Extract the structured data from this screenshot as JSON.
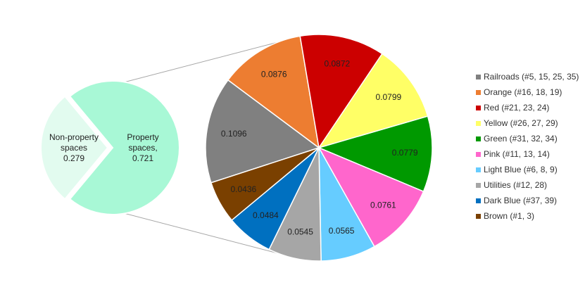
{
  "chart_data": {
    "type": "pie",
    "primary_pie": {
      "slices": [
        {
          "label_lines": [
            "Non-property",
            "spaces"
          ],
          "value": 0.279,
          "value_label": "0.279",
          "color": "#E2FBEF"
        },
        {
          "label_lines": [
            "Property",
            "spaces,"
          ],
          "value": 0.721,
          "value_label": "0.721",
          "color": "#A8F8D6"
        }
      ]
    },
    "secondary_pie": {
      "slices": [
        {
          "name": "Railroads (#5, 15, 25, 35)",
          "value": 0.1096,
          "value_label": "0.1096",
          "color": "#808080"
        },
        {
          "name": "Orange (#16, 18, 19)",
          "value": 0.0876,
          "value_label": "0.0876",
          "color": "#ED7D31"
        },
        {
          "name": "Red (#21, 23, 24)",
          "value": 0.0872,
          "value_label": "0.0872",
          "color": "#CC0000"
        },
        {
          "name": "Yellow (#26, 27, 29)",
          "value": 0.0799,
          "value_label": "0.0799",
          "color": "#FFFF66"
        },
        {
          "name": "Green (#31, 32, 34)",
          "value": 0.0779,
          "value_label": "0.0779",
          "color": "#009900"
        },
        {
          "name": "Pink (#11, 13, 14)",
          "value": 0.0761,
          "value_label": "0.0761",
          "color": "#FF66CC"
        },
        {
          "name": "Light Blue (#6, 8, 9)",
          "value": 0.0565,
          "value_label": "0.0565",
          "color": "#66CCFF"
        },
        {
          "name": "Utilities (#12, 28)",
          "value": 0.0545,
          "value_label": "0.0545",
          "color": "#A6A6A6"
        },
        {
          "name": "Dark Blue (#37, 39)",
          "value": 0.0484,
          "value_label": "0.0484",
          "color": "#0070C0"
        },
        {
          "name": "Brown (#1, 3)",
          "value": 0.0436,
          "value_label": "0.0436",
          "color": "#7A4000"
        }
      ]
    },
    "legend_placement": "right"
  }
}
